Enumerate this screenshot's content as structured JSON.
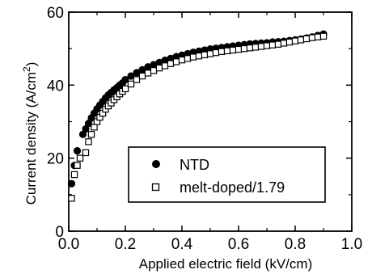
{
  "chart_data": {
    "type": "scatter",
    "title": "",
    "xlabel": "Applied electric field (kV/cm)",
    "ylabel_main": "Current density (A/cm",
    "ylabel_sup": "2",
    "ylabel_close": ")",
    "xlim": [
      0.0,
      1.0
    ],
    "ylim": [
      0,
      60
    ],
    "xticks": [
      0.0,
      0.2,
      0.4,
      0.6,
      0.8,
      1.0
    ],
    "xtick_labels": [
      "0.0",
      "0.2",
      "0.4",
      "0.6",
      "0.8",
      "1.0"
    ],
    "yticks": [
      0,
      20,
      40,
      60
    ],
    "ytick_labels": [
      "0",
      "20",
      "40",
      "60"
    ],
    "grid": false,
    "legend_position": "center-right",
    "series": [
      {
        "name": "NTD",
        "marker": "filled-circle",
        "color": "#000000",
        "x": [
          0.01,
          0.02,
          0.03,
          0.05,
          0.06,
          0.07,
          0.08,
          0.09,
          0.1,
          0.11,
          0.12,
          0.13,
          0.14,
          0.15,
          0.16,
          0.17,
          0.18,
          0.19,
          0.2,
          0.22,
          0.24,
          0.26,
          0.28,
          0.3,
          0.32,
          0.34,
          0.36,
          0.38,
          0.4,
          0.42,
          0.44,
          0.46,
          0.48,
          0.5,
          0.52,
          0.54,
          0.56,
          0.58,
          0.6,
          0.62,
          0.64,
          0.66,
          0.68,
          0.7,
          0.72,
          0.74,
          0.76,
          0.78,
          0.8,
          0.82,
          0.84,
          0.86,
          0.88,
          0.9
        ],
        "y": [
          13,
          18,
          22,
          26.5,
          28,
          29.5,
          31,
          32.3,
          33.5,
          34.5,
          35.5,
          36.5,
          37.3,
          38,
          38.7,
          39.3,
          40,
          40.6,
          41.5,
          42.5,
          43.4,
          44.2,
          45,
          45.6,
          46.2,
          46.8,
          47.3,
          47.8,
          48.2,
          48.6,
          49,
          49.3,
          49.6,
          49.9,
          50.1,
          50.3,
          50.5,
          50.7,
          50.9,
          51.1,
          51.3,
          51.4,
          51.5,
          51.6,
          51.8,
          51.9,
          52.0,
          52.2,
          52.4,
          52.6,
          52.9,
          53.2,
          53.6,
          54.0
        ]
      },
      {
        "name": "melt-doped/1.79",
        "marker": "open-square",
        "color": "#000000",
        "x": [
          0.01,
          0.02,
          0.03,
          0.04,
          0.06,
          0.07,
          0.08,
          0.09,
          0.1,
          0.11,
          0.12,
          0.13,
          0.14,
          0.15,
          0.16,
          0.17,
          0.18,
          0.19,
          0.2,
          0.22,
          0.24,
          0.26,
          0.28,
          0.3,
          0.32,
          0.34,
          0.36,
          0.38,
          0.4,
          0.42,
          0.44,
          0.46,
          0.48,
          0.5,
          0.52,
          0.54,
          0.56,
          0.58,
          0.6,
          0.62,
          0.64,
          0.66,
          0.68,
          0.7,
          0.72,
          0.74,
          0.76,
          0.78,
          0.8,
          0.82,
          0.84,
          0.86,
          0.88,
          0.9
        ],
        "y": [
          9,
          15.5,
          18,
          20,
          21.5,
          24.5,
          26.5,
          28.5,
          30,
          31.2,
          32.3,
          33.4,
          34.3,
          35.1,
          36,
          36.8,
          37.6,
          38.3,
          39,
          40.3,
          41.5,
          42.5,
          43.3,
          44,
          44.7,
          45.3,
          45.9,
          46.4,
          46.9,
          47.3,
          47.7,
          48,
          48.3,
          48.6,
          48.9,
          49.2,
          49.4,
          49.6,
          49.8,
          50,
          50.2,
          50.4,
          50.6,
          50.8,
          51,
          51.2,
          51.5,
          51.8,
          52.1,
          52.4,
          52.7,
          53,
          53.2,
          53.4
        ]
      }
    ]
  }
}
